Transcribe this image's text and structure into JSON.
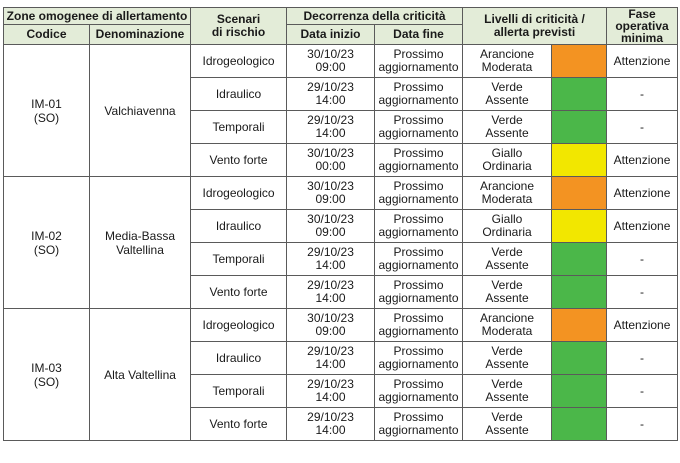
{
  "header": {
    "zone_group": "Zone omogenee di allertamento",
    "codice": "Codice",
    "denominazione": "Denominazione",
    "scenari_line1": "Scenari",
    "scenari_line2": "di rischio",
    "decorrenza": "Decorrenza della criticità",
    "data_inizio": "Data inizio",
    "data_fine": "Data fine",
    "livelli_line1": "Livelli di criticità /",
    "livelli_line2": "allerta previsti",
    "fase_line1": "Fase",
    "fase_line2": "operativa",
    "fase_line3": "minima"
  },
  "colors": {
    "arancione": "#f39322",
    "verde": "#4bb749",
    "giallo": "#f2e700"
  },
  "zones": [
    {
      "code": "IM-01",
      "prov": "(SO)",
      "name_line1": "Valchiavenna",
      "name_line2": "",
      "rows": [
        {
          "scenario": "Idrogeologico",
          "start_date": "30/10/23",
          "start_time": "09:00",
          "end1": "Prossimo",
          "end2": "aggiornamento",
          "level1": "Arancione",
          "level2": "Moderata",
          "color": "arancione",
          "fase": "Attenzione"
        },
        {
          "scenario": "Idraulico",
          "start_date": "29/10/23",
          "start_time": "14:00",
          "end1": "Prossimo",
          "end2": "aggiornamento",
          "level1": "Verde",
          "level2": "Assente",
          "color": "verde",
          "fase": "-"
        },
        {
          "scenario": "Temporali",
          "start_date": "29/10/23",
          "start_time": "14:00",
          "end1": "Prossimo",
          "end2": "aggiornamento",
          "level1": "Verde",
          "level2": "Assente",
          "color": "verde",
          "fase": "-"
        },
        {
          "scenario": "Vento forte",
          "start_date": "30/10/23",
          "start_time": "00:00",
          "end1": "Prossimo",
          "end2": "aggiornamento",
          "level1": "Giallo",
          "level2": "Ordinaria",
          "color": "giallo",
          "fase": "Attenzione"
        }
      ]
    },
    {
      "code": "IM-02",
      "prov": "(SO)",
      "name_line1": "Media-Bassa",
      "name_line2": "Valtellina",
      "rows": [
        {
          "scenario": "Idrogeologico",
          "start_date": "30/10/23",
          "start_time": "09:00",
          "end1": "Prossimo",
          "end2": "aggiornamento",
          "level1": "Arancione",
          "level2": "Moderata",
          "color": "arancione",
          "fase": "Attenzione"
        },
        {
          "scenario": "Idraulico",
          "start_date": "30/10/23",
          "start_time": "09:00",
          "end1": "Prossimo",
          "end2": "aggiornamento",
          "level1": "Giallo",
          "level2": "Ordinaria",
          "color": "giallo",
          "fase": "Attenzione"
        },
        {
          "scenario": "Temporali",
          "start_date": "29/10/23",
          "start_time": "14:00",
          "end1": "Prossimo",
          "end2": "aggiornamento",
          "level1": "Verde",
          "level2": "Assente",
          "color": "verde",
          "fase": "-"
        },
        {
          "scenario": "Vento forte",
          "start_date": "29/10/23",
          "start_time": "14:00",
          "end1": "Prossimo",
          "end2": "aggiornamento",
          "level1": "Verde",
          "level2": "Assente",
          "color": "verde",
          "fase": "-"
        }
      ]
    },
    {
      "code": "IM-03",
      "prov": "(SO)",
      "name_line1": "Alta Valtellina",
      "name_line2": "",
      "rows": [
        {
          "scenario": "Idrogeologico",
          "start_date": "30/10/23",
          "start_time": "09:00",
          "end1": "Prossimo",
          "end2": "aggiornamento",
          "level1": "Arancione",
          "level2": "Moderata",
          "color": "arancione",
          "fase": "Attenzione"
        },
        {
          "scenario": "Idraulico",
          "start_date": "29/10/23",
          "start_time": "14:00",
          "end1": "Prossimo",
          "end2": "aggiornamento",
          "level1": "Verde",
          "level2": "Assente",
          "color": "verde",
          "fase": "-"
        },
        {
          "scenario": "Temporali",
          "start_date": "29/10/23",
          "start_time": "14:00",
          "end1": "Prossimo",
          "end2": "aggiornamento",
          "level1": "Verde",
          "level2": "Assente",
          "color": "verde",
          "fase": "-"
        },
        {
          "scenario": "Vento forte",
          "start_date": "29/10/23",
          "start_time": "14:00",
          "end1": "Prossimo",
          "end2": "aggiornamento",
          "level1": "Verde",
          "level2": "Assente",
          "color": "verde",
          "fase": "-"
        }
      ]
    }
  ]
}
